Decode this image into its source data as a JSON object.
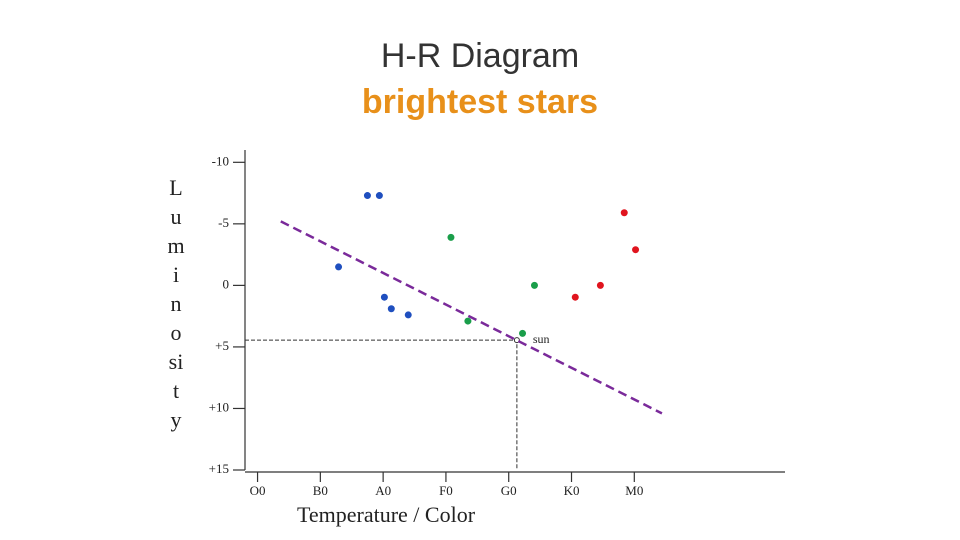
{
  "chart_data": {
    "type": "scatter",
    "title": "H-R Diagram",
    "subtitle": "brightest stars",
    "xlabel": "Temperature / Color",
    "ylabel_lines": [
      "L",
      "u",
      "m",
      "i",
      "n",
      "o",
      "si",
      "t",
      "y"
    ],
    "xlim": [
      -0.2,
      8.4
    ],
    "xticks": [
      {
        "value": 0,
        "label": "O0"
      },
      {
        "value": 1,
        "label": "B0"
      },
      {
        "value": 2,
        "label": "A0"
      },
      {
        "value": 3,
        "label": "F0"
      },
      {
        "value": 4,
        "label": "G0"
      },
      {
        "value": 5,
        "label": "K0"
      },
      {
        "value": 6,
        "label": "M0"
      }
    ],
    "ylim": [
      -11,
      15
    ],
    "y_reversed": true,
    "yticks": [
      -10,
      -5,
      0,
      {
        "value": 5,
        "label": "+5"
      },
      {
        "value": 10,
        "label": "+10"
      },
      {
        "value": 15,
        "label": "+15"
      }
    ],
    "series": [
      {
        "color": "#1f4fbf",
        "x": [
          1.75,
          1.94,
          1.29,
          2.02,
          2.13,
          2.4
        ],
        "values": [
          -7.3,
          -7.3,
          -1.5,
          0.96,
          1.9,
          2.4
        ]
      },
      {
        "color": "#1a9e4a",
        "x": [
          3.08,
          4.41,
          3.35,
          4.22
        ],
        "values": [
          -3.9,
          0,
          2.9,
          3.9
        ]
      },
      {
        "color": "#e0141e",
        "x": [
          5.84,
          6.02,
          5.46,
          5.06
        ],
        "values": [
          -5.9,
          -2.9,
          0,
          0.96
        ]
      }
    ],
    "trend_line": {
      "color": "#7a2a9a",
      "x": [
        0.37,
        6.44
      ],
      "values": [
        -5.2,
        10.4
      ]
    },
    "annotation": {
      "text": "sun",
      "x": 4.13,
      "y": 4.45
    }
  }
}
